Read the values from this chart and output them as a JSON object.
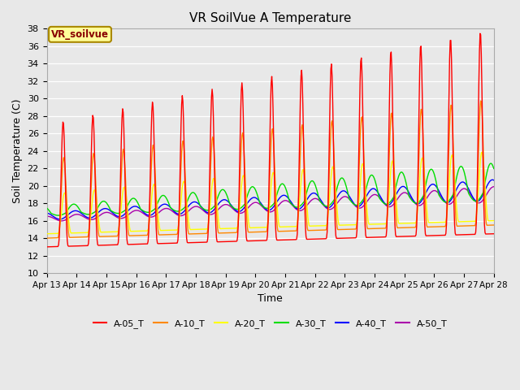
{
  "title": "VR SoilVue A Temperature",
  "xlabel": "Time",
  "ylabel": "Soil Temperature (C)",
  "ylim": [
    10,
    38
  ],
  "background_color": "#e8e8e8",
  "series_colors": {
    "A-05_T": "#ff0000",
    "A-10_T": "#ff8800",
    "A-20_T": "#ffff00",
    "A-30_T": "#00dd00",
    "A-40_T": "#0000ff",
    "A-50_T": "#aa00aa"
  },
  "legend_label": "VR_soilvue",
  "legend_bg": "#ffff99",
  "legend_border": "#aa8800",
  "days_total": 15,
  "n_points_per_day": 48
}
